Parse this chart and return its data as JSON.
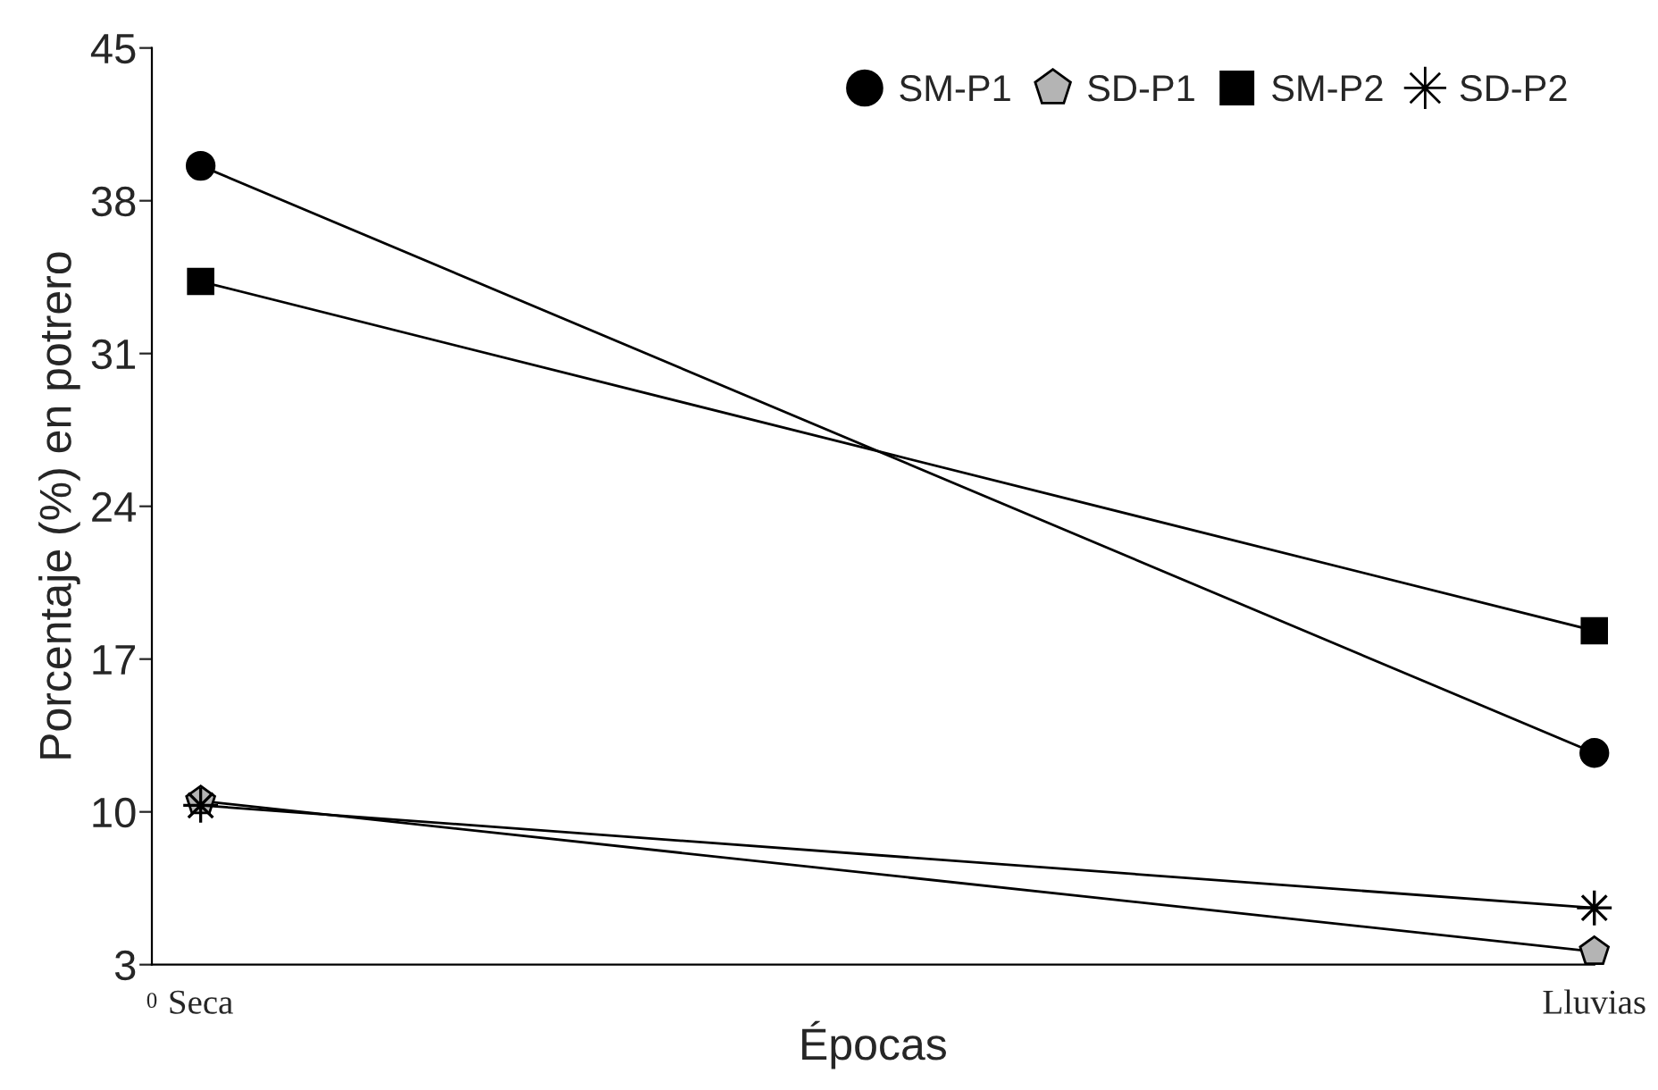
{
  "chart_data": {
    "type": "line",
    "xlabel": "Épocas",
    "ylabel": "Porcentaje (%) en potrero",
    "categories": [
      "Seca",
      "Lluvias"
    ],
    "series": [
      {
        "name": "SM-P1",
        "color": "#000000",
        "marker": "circle",
        "values": [
          39.6,
          12.7
        ]
      },
      {
        "name": "SD-P1",
        "color": "#b4b4b4",
        "marker": "triangle",
        "values": [
          10.5,
          3.6
        ]
      },
      {
        "name": "SM-P2",
        "color": "#000000",
        "marker": "square",
        "values": [
          34.3,
          18.3
        ]
      },
      {
        "name": "SD-P2",
        "color": "#000000",
        "marker": "star",
        "values": [
          10.3,
          5.6
        ]
      }
    ],
    "ylim": [
      3,
      45
    ],
    "yticks": [
      3,
      10,
      17,
      24,
      31,
      38,
      45
    ],
    "annotations": [
      "0"
    ],
    "grid": false,
    "legend": "top right",
    "line_style": "solid"
  }
}
